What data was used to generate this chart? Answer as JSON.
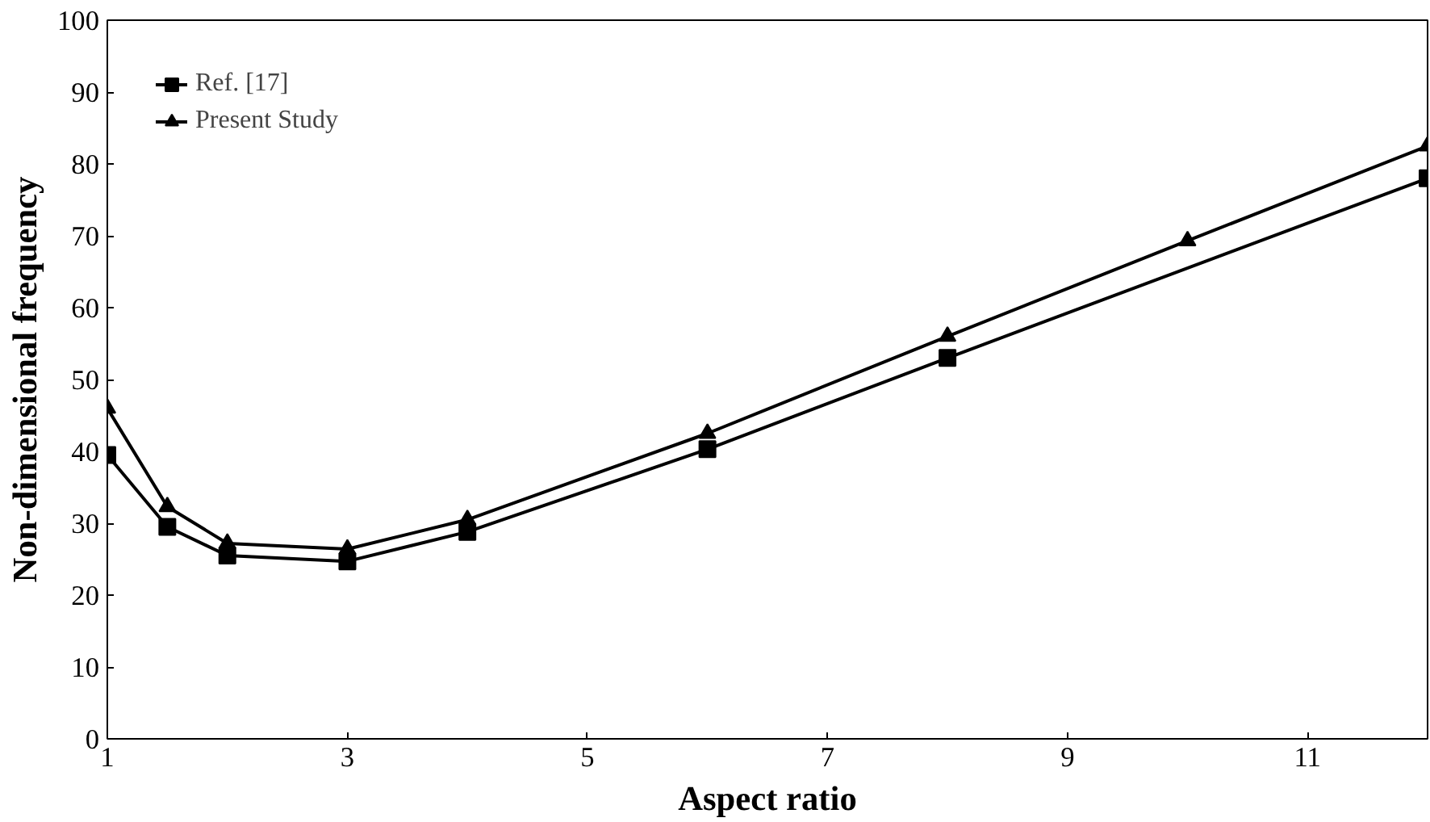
{
  "chart_data": {
    "type": "line",
    "xlabel": "Aspect ratio",
    "ylabel": "Non-dimensional frequency",
    "xlim": [
      1,
      12
    ],
    "ylim": [
      0,
      100
    ],
    "xticks": [
      1,
      3,
      5,
      7,
      9,
      11
    ],
    "yticks": [
      0,
      10,
      20,
      30,
      40,
      50,
      60,
      70,
      80,
      90,
      100
    ],
    "grid": false,
    "legend": "top left",
    "line_style": "solid",
    "series": [
      {
        "name": "Ref. [17]",
        "color": "#000000",
        "marker": "square",
        "x": [
          1,
          1.5,
          2,
          3,
          4,
          6,
          8,
          12
        ],
        "values": [
          39.5,
          29.5,
          25.5,
          24.7,
          28.8,
          40.3,
          53,
          78
        ]
      },
      {
        "name": "Present Study",
        "color": "#000000",
        "marker": "triangle",
        "x": [
          1,
          1.5,
          2,
          3,
          4,
          6,
          8,
          10,
          12
        ],
        "values": [
          46,
          32.3,
          27.2,
          26.4,
          30.5,
          42.5,
          56,
          69.3,
          82.5
        ]
      }
    ]
  }
}
